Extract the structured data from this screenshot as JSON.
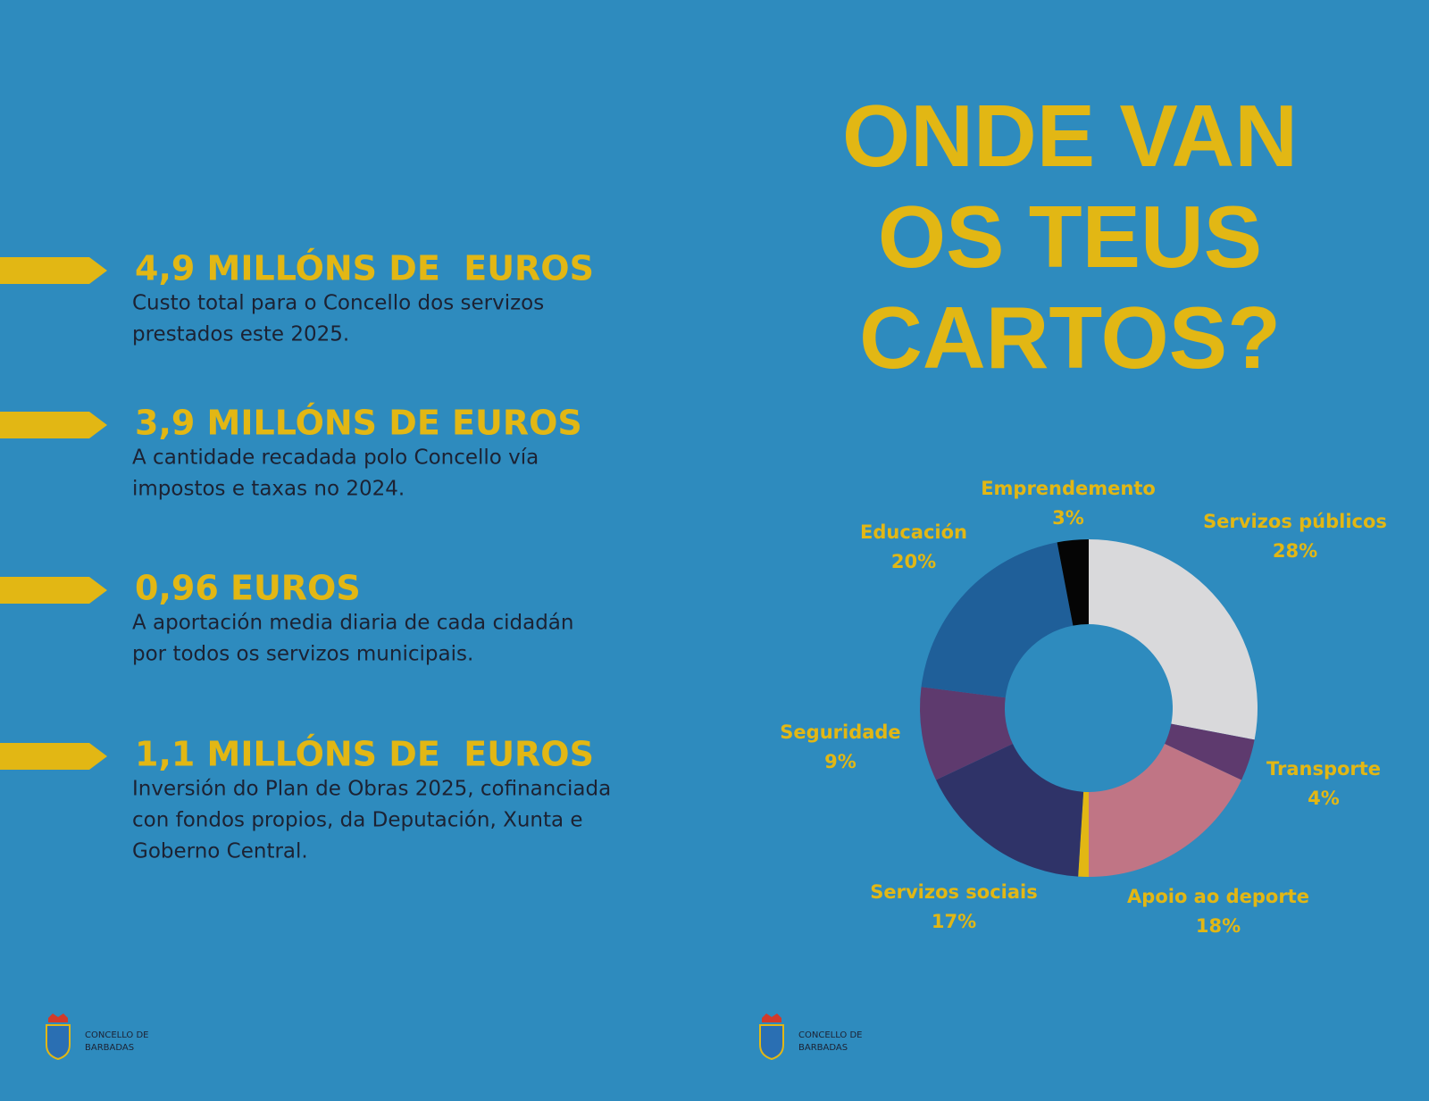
{
  "stats": [
    {
      "heading": "4,9 MILLÓNS DE  EUROS",
      "lines": [
        "Custo total para o Concello dos servizos",
        "prestados este 2025."
      ]
    },
    {
      "heading": "3,9 MILLÓNS DE EUROS",
      "lines": [
        "A cantidade recadada polo Concello vía",
        "impostos e taxas no 2024."
      ]
    },
    {
      "heading": "0,96 EUROS",
      "lines": [
        "A aportación media diaria de cada cidadán",
        "por todos os servizos municipais."
      ]
    },
    {
      "heading": "1,1 MILLÓNS DE  EUROS",
      "lines": [
        "Inversión do Plan de Obras 2025, cofinanciada",
        "con fondos propios, da Deputación, Xunta e",
        "Goberno Central."
      ]
    }
  ],
  "chart_data": {
    "type": "donut",
    "title": [
      "ONDE VAN",
      "OS TEUS",
      "CARTOS?"
    ],
    "categories": [
      "Servizos públicos",
      "Transporte",
      "Apoio ao deporte",
      null,
      "Servizos sociais",
      "Seguridade",
      "Educación",
      "Emprendemento"
    ],
    "values": [
      28,
      4,
      18,
      1,
      17,
      9,
      20,
      3
    ],
    "value_labels": [
      "28%",
      "4%",
      "18%",
      null,
      "17%",
      "9%",
      "20%",
      "3%"
    ],
    "colors": [
      "#d9d9db",
      "#5e3a6e",
      "#c07585",
      "#e2b714",
      "#2f3368",
      "#5e3a6e",
      "#1f5f99",
      "#050505"
    ]
  },
  "footer": {
    "logo_lines": [
      "CONCELLO DE",
      "BARBADAS"
    ]
  }
}
